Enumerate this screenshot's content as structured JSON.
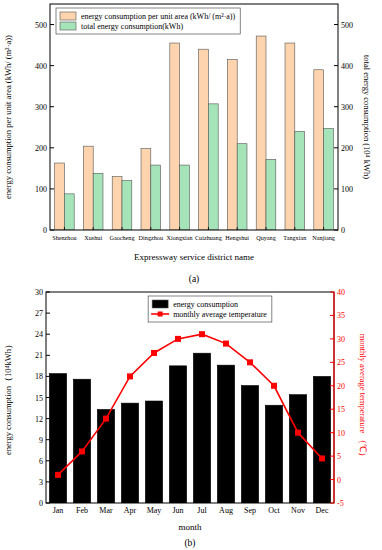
{
  "chart_data": [
    {
      "type": "bar",
      "title": "(a)",
      "x_label": "Expressway service district name",
      "y_label": "energy consumption per unit area (kWh/ (m²·a))",
      "y2_label": "total energy consumption (10⁴ kWh)",
      "categories": [
        "Shenzhou",
        "Xushui",
        "Gaocheng",
        "Dingzhou",
        "Xiongxian",
        "Cuizhuang",
        "Hengshui",
        "Quyang",
        "Tangxian",
        "Nanjiang"
      ],
      "series": [
        {
          "name": "energy consumption per unit area (kWh/ (m²·a))",
          "color": "#fdd4ae",
          "values": [
            163,
            204,
            130,
            198,
            455,
            440,
            415,
            472,
            455,
            390
          ]
        },
        {
          "name": "total energy consumption(kWh)",
          "color": "#a5e3b8",
          "axis": "y2",
          "values": [
            88,
            138,
            120,
            158,
            158,
            307,
            210,
            172,
            240,
            247
          ]
        }
      ],
      "ylim": [
        0,
        550
      ],
      "yticks": [
        0,
        100,
        200,
        300,
        400,
        500
      ],
      "y2lim": [
        0,
        550
      ],
      "y2ticks": [
        0,
        100,
        200,
        300,
        400,
        500
      ],
      "legend": "upper left"
    },
    {
      "type": "bar",
      "title": "(b)",
      "x_label": "month",
      "y_label": "energy consumption（10⁴kWh）",
      "y2_label": "monthly average temperature （℃）",
      "categories": [
        "Jan",
        "Feb",
        "Mar",
        "Apr",
        "May",
        "Jun",
        "Jul",
        "Aug",
        "Sep",
        "Oct",
        "Nov",
        "Dec"
      ],
      "series": [
        {
          "name": "energy consumption",
          "color": "#000000",
          "values": [
            18.4,
            17.6,
            13.3,
            14.2,
            14.5,
            19.5,
            21.3,
            19.6,
            16.7,
            13.9,
            15.4,
            18.0
          ]
        },
        {
          "name": "monthly average temperature",
          "color": "#ff0000",
          "type": "line",
          "marker": "square",
          "axis": "y2",
          "values": [
            1,
            6,
            13,
            22,
            27,
            30,
            31,
            29,
            25,
            20,
            10,
            4.5
          ]
        }
      ],
      "ylim": [
        0,
        30
      ],
      "yticks": [
        0,
        3,
        6,
        9,
        12,
        15,
        18,
        21,
        24,
        27,
        30
      ],
      "y2lim": [
        -5,
        40
      ],
      "y2ticks": [
        -5,
        0,
        5,
        10,
        15,
        20,
        25,
        30,
        35,
        40
      ],
      "legend": "upper center"
    }
  ]
}
